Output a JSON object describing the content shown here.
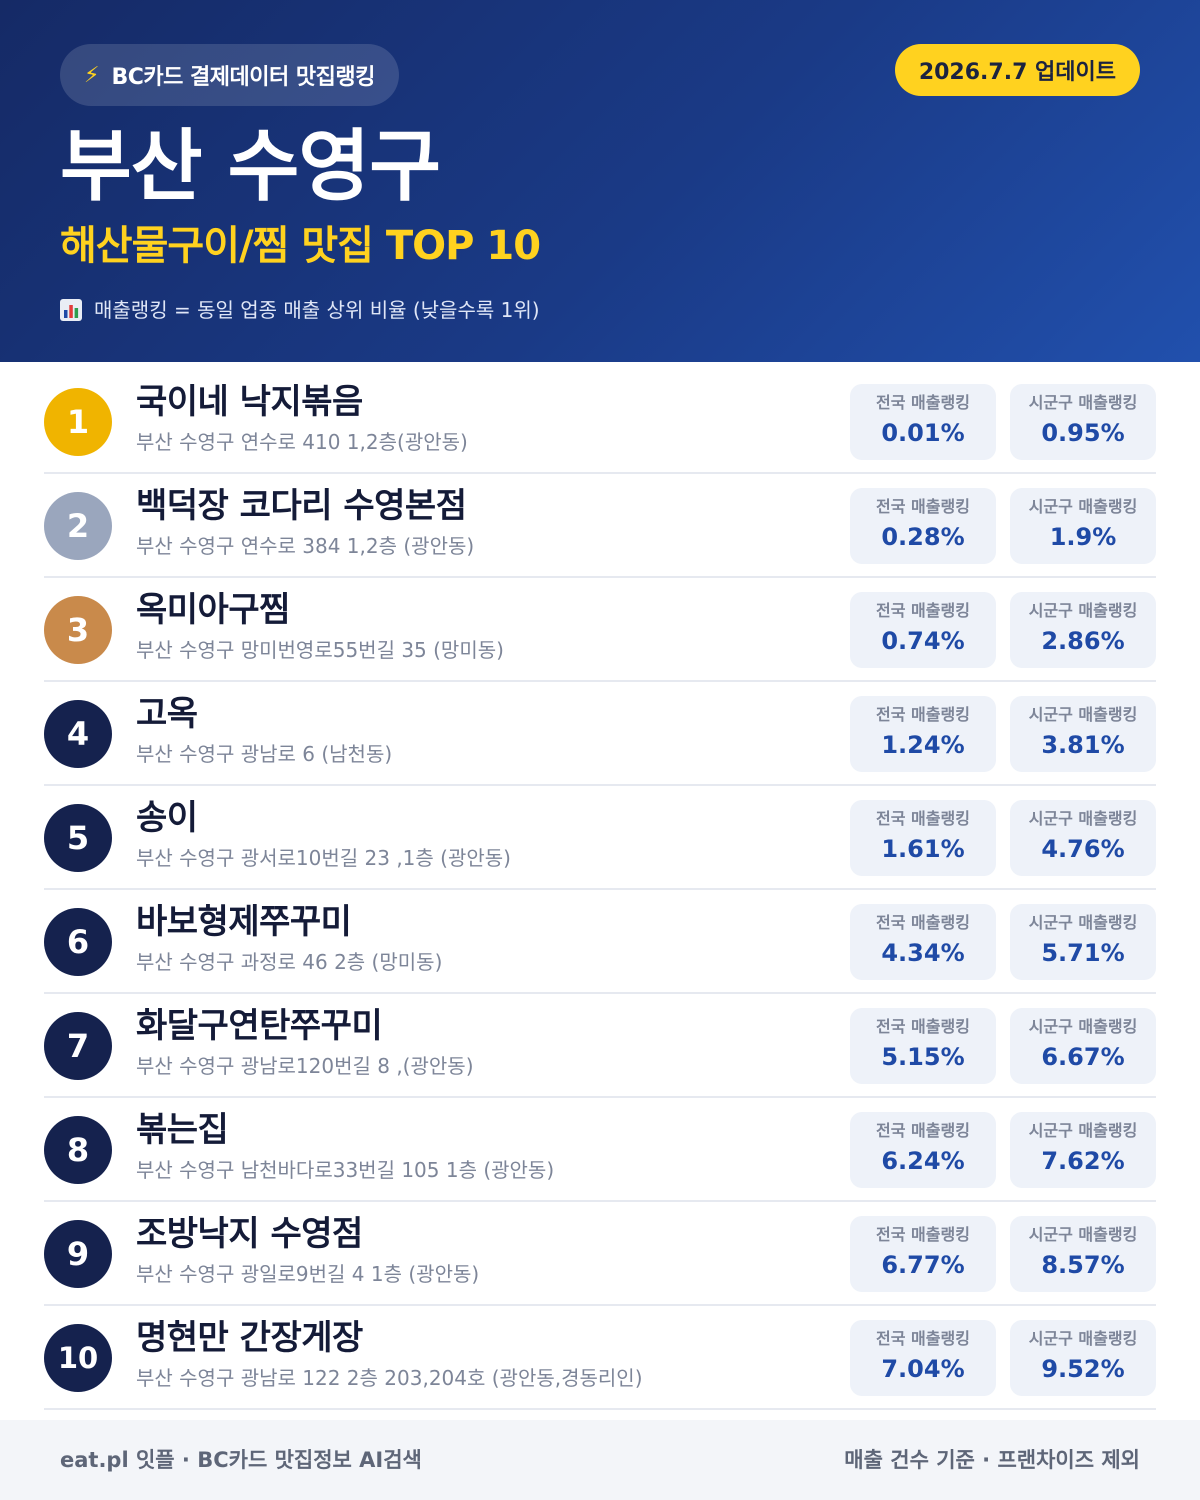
{
  "header": {
    "brand_icon": "lightning-bolt-icon",
    "brand_label": "BC카드 결제데이터 맛집랭킹",
    "update_label": "2026.7.7 업데이트",
    "title": "부산 수영구",
    "subtitle": "해산물구이/찜 맛집 TOP 10",
    "legend_icon": "bar-chart-icon",
    "legend_text": "매출랭킹 = 동일 업종 매출 상위 비율 (낮을수록 1위)"
  },
  "colors": {
    "gold": "#f0b400",
    "silver": "#9aa6bd",
    "bronze": "#c98a4b",
    "navy": "#15224e",
    "accent_yellow": "#ffd21f",
    "value_blue": "#1f4aa6"
  },
  "labels": {
    "national": "전국 매출랭킹",
    "local": "시군구 매출랭킹"
  },
  "restaurants": [
    {
      "rank": "1",
      "name": "국이네 낙지볶음",
      "address": "부산 수영구 연수로 410 1,2층(광안동)",
      "national": "0.01%",
      "local": "0.95%"
    },
    {
      "rank": "2",
      "name": "백덕장 코다리 수영본점",
      "address": "부산 수영구 연수로 384 1,2층 (광안동)",
      "national": "0.28%",
      "local": "1.9%"
    },
    {
      "rank": "3",
      "name": "옥미아구찜",
      "address": "부산 수영구 망미번영로55번길 35 (망미동)",
      "national": "0.74%",
      "local": "2.86%"
    },
    {
      "rank": "4",
      "name": "고옥",
      "address": "부산 수영구 광남로 6 (남천동)",
      "national": "1.24%",
      "local": "3.81%"
    },
    {
      "rank": "5",
      "name": "송이",
      "address": "부산 수영구 광서로10번길 23 ,1층 (광안동)",
      "national": "1.61%",
      "local": "4.76%"
    },
    {
      "rank": "6",
      "name": "바보형제쭈꾸미",
      "address": "부산 수영구 과정로 46 2층 (망미동)",
      "national": "4.34%",
      "local": "5.71%"
    },
    {
      "rank": "7",
      "name": "화달구연탄쭈꾸미",
      "address": "부산 수영구 광남로120번길 8 ,(광안동)",
      "national": "5.15%",
      "local": "6.67%"
    },
    {
      "rank": "8",
      "name": "볶는집",
      "address": "부산 수영구 남천바다로33번길 105 1층 (광안동)",
      "national": "6.24%",
      "local": "7.62%"
    },
    {
      "rank": "9",
      "name": "조방낙지 수영점",
      "address": "부산 수영구 광일로9번길 4 1층 (광안동)",
      "national": "6.77%",
      "local": "8.57%"
    },
    {
      "rank": "10",
      "name": "명현만 간장게장",
      "address": "부산 수영구 광남로 122 2층 203,204호 (광안동,경동리인)",
      "national": "7.04%",
      "local": "9.52%"
    }
  ],
  "footer": {
    "left": "eat.pl 잇플 · BC카드 맛집정보 AI검색",
    "right": "매출 건수 기준 · 프랜차이즈 제외"
  }
}
